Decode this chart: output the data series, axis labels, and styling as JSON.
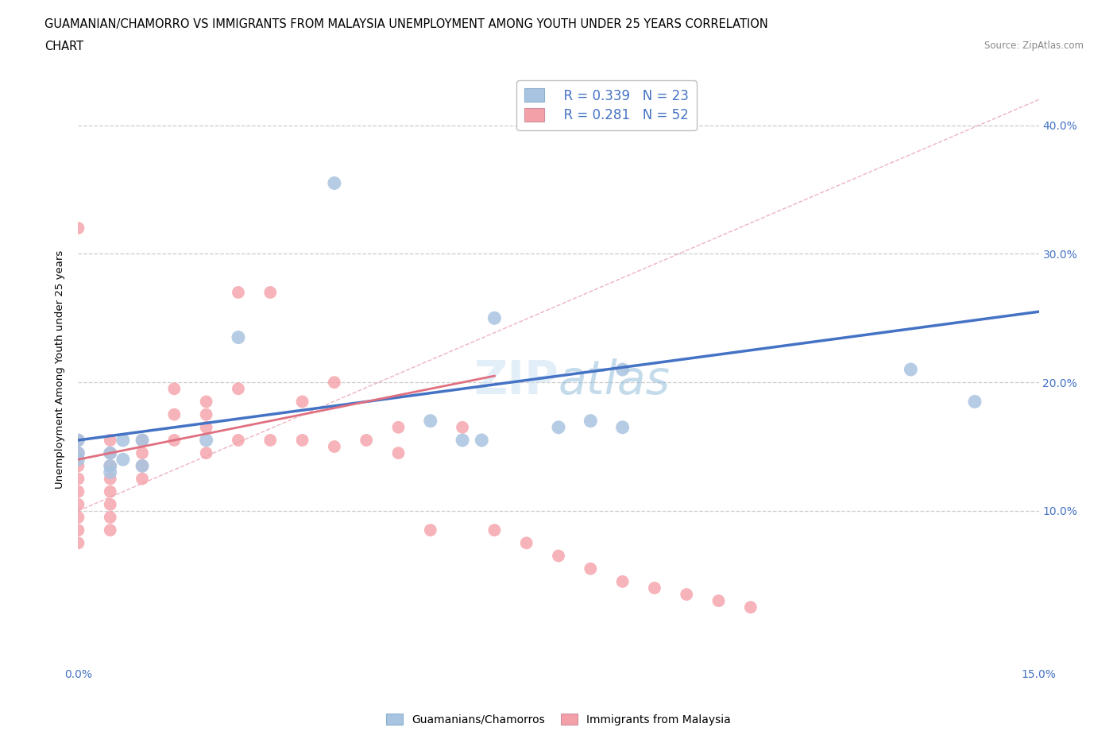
{
  "title_line1": "GUAMANIAN/CHAMORRO VS IMMIGRANTS FROM MALAYSIA UNEMPLOYMENT AMONG YOUTH UNDER 25 YEARS CORRELATION",
  "title_line2": "CHART",
  "source_text": "Source: ZipAtlas.com",
  "ylabel": "Unemployment Among Youth under 25 years",
  "xlim": [
    0.0,
    0.15
  ],
  "ylim": [
    -0.02,
    0.44
  ],
  "yticks": [
    0.1,
    0.2,
    0.3,
    0.4
  ],
  "legend_blue_r": "R = 0.339",
  "legend_blue_n": "N = 23",
  "legend_pink_r": "R = 0.281",
  "legend_pink_n": "N = 52",
  "blue_color": "#a8c4e0",
  "pink_color": "#f4a0a8",
  "blue_line_color": "#4472c4",
  "pink_line_color": "#e07080",
  "blue_scatter_x": [
    0.005,
    0.005,
    0.005,
    0.007,
    0.007,
    0.01,
    0.01,
    0.0,
    0.0,
    0.0,
    0.02,
    0.025,
    0.04,
    0.055,
    0.06,
    0.063,
    0.065,
    0.075,
    0.08,
    0.085,
    0.085,
    0.13,
    0.14
  ],
  "blue_scatter_y": [
    0.145,
    0.135,
    0.13,
    0.155,
    0.14,
    0.155,
    0.135,
    0.155,
    0.145,
    0.14,
    0.155,
    0.235,
    0.355,
    0.17,
    0.155,
    0.155,
    0.25,
    0.165,
    0.17,
    0.21,
    0.165,
    0.21,
    0.185
  ],
  "pink_scatter_x": [
    0.0,
    0.0,
    0.0,
    0.0,
    0.0,
    0.0,
    0.0,
    0.0,
    0.0,
    0.0,
    0.005,
    0.005,
    0.005,
    0.005,
    0.005,
    0.005,
    0.005,
    0.005,
    0.01,
    0.01,
    0.01,
    0.01,
    0.015,
    0.015,
    0.015,
    0.02,
    0.02,
    0.02,
    0.02,
    0.025,
    0.025,
    0.025,
    0.03,
    0.03,
    0.035,
    0.035,
    0.04,
    0.04,
    0.045,
    0.05,
    0.05,
    0.055,
    0.06,
    0.065,
    0.07,
    0.075,
    0.08,
    0.085,
    0.09,
    0.095,
    0.1,
    0.105
  ],
  "pink_scatter_y": [
    0.155,
    0.145,
    0.135,
    0.125,
    0.115,
    0.105,
    0.095,
    0.085,
    0.075,
    0.32,
    0.155,
    0.145,
    0.135,
    0.125,
    0.115,
    0.105,
    0.095,
    0.085,
    0.155,
    0.145,
    0.135,
    0.125,
    0.195,
    0.175,
    0.155,
    0.185,
    0.175,
    0.165,
    0.145,
    0.27,
    0.195,
    0.155,
    0.27,
    0.155,
    0.185,
    0.155,
    0.2,
    0.15,
    0.155,
    0.165,
    0.145,
    0.085,
    0.165,
    0.085,
    0.075,
    0.065,
    0.055,
    0.045,
    0.04,
    0.035,
    0.03,
    0.025
  ]
}
